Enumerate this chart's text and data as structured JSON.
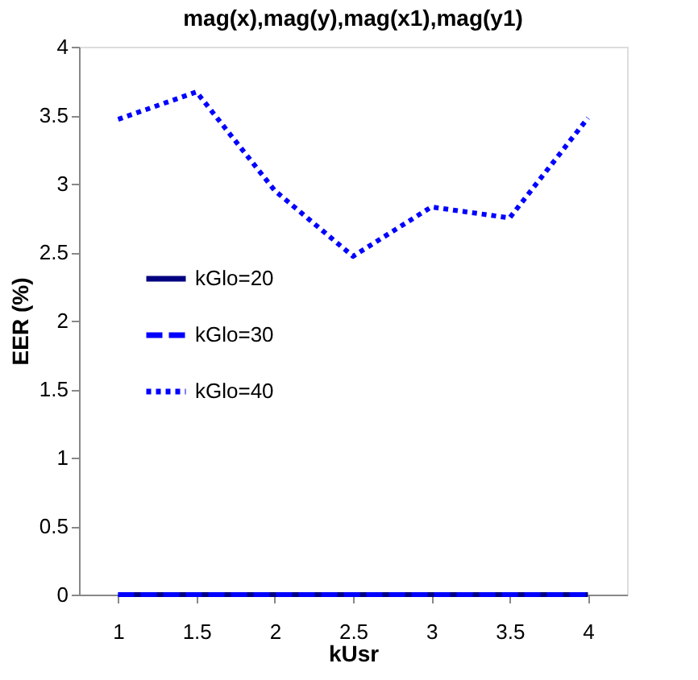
{
  "chart_data": {
    "type": "line",
    "title": "mag(x),mag(y),mag(x1),mag(y1)",
    "xlabel": "kUsr",
    "ylabel": "EER (%)",
    "categories": [
      "1",
      "1.5",
      "2",
      "2.5",
      "3",
      "3.5",
      "4"
    ],
    "series": [
      {
        "name": "kGlo=20",
        "color": "#000080",
        "line_style": "solid",
        "values": [
          0,
          0,
          0,
          0,
          0,
          0,
          0
        ]
      },
      {
        "name": "kGlo=30",
        "color": "#0000ff",
        "line_style": "dashed",
        "values": [
          0,
          0,
          0,
          0,
          0,
          0,
          0
        ]
      },
      {
        "name": "kGlo=40",
        "color": "#0000ff",
        "line_style": "dotted",
        "values": [
          3.47,
          3.67,
          2.95,
          2.47,
          2.83,
          2.75,
          3.48
        ]
      }
    ],
    "ylim": [
      0,
      4
    ],
    "yticks": [
      0,
      0.5,
      1,
      1.5,
      2,
      2.5,
      3,
      3.5,
      4
    ],
    "grid": false,
    "legend": "left",
    "marker": "none"
  }
}
